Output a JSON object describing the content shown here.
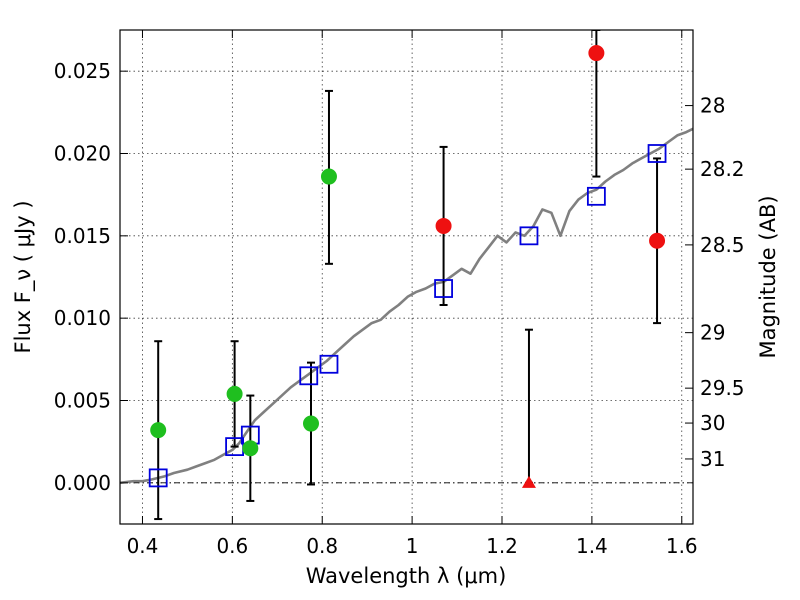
{
  "chart_data": {
    "type": "scatter",
    "title": "",
    "xlabel": "Wavelength  λ (μm)",
    "ylabel": "Flux  F_ν  ( μJy )",
    "y2label": "Magnitude (AB)",
    "xlim": [
      0.35,
      1.625
    ],
    "ylim": [
      -0.0025,
      0.0275
    ],
    "grid": true,
    "x_ticks": [
      "0.4",
      "0.6",
      "0.8",
      "1",
      "1.2",
      "1.4",
      "1.6"
    ],
    "x_tick_values": [
      0.4,
      0.6,
      0.8,
      1.0,
      1.2,
      1.4,
      1.6
    ],
    "y_ticks": [
      "0.000",
      "0.005",
      "0.010",
      "0.015",
      "0.020",
      "0.025"
    ],
    "y_tick_values": [
      0.0,
      0.005,
      0.01,
      0.015,
      0.02,
      0.025
    ],
    "mag_ticks": [
      {
        "label": "28",
        "flux": 0.02291
      },
      {
        "label": "28.2",
        "flux": 0.01905
      },
      {
        "label": "28.5",
        "flux": 0.01445
      },
      {
        "label": "29",
        "flux": 0.00912
      },
      {
        "label": "29.5",
        "flux": 0.00575
      },
      {
        "label": "30",
        "flux": 0.00363
      },
      {
        "label": "31",
        "flux": 0.00145
      }
    ],
    "zero_line": 0.0,
    "colors": {
      "model": "#808080",
      "green": "#1fbf1f",
      "red": "#ee1111",
      "blue_square": "#0000dd",
      "errorbar": "#000000"
    },
    "series": [
      {
        "style": "model-line",
        "color": "#808080",
        "points": [
          [
            0.35,
            0.0
          ],
          [
            0.38,
            0.0001
          ],
          [
            0.4,
            0.0001
          ],
          [
            0.42,
            0.0002
          ],
          [
            0.435,
            0.0003
          ],
          [
            0.45,
            0.0004
          ],
          [
            0.47,
            0.0006
          ],
          [
            0.5,
            0.0008
          ],
          [
            0.52,
            0.001
          ],
          [
            0.54,
            0.0012
          ],
          [
            0.56,
            0.0014
          ],
          [
            0.58,
            0.0017
          ],
          [
            0.6,
            0.002
          ],
          [
            0.615,
            0.0024
          ],
          [
            0.63,
            0.003
          ],
          [
            0.65,
            0.0038
          ],
          [
            0.67,
            0.0043
          ],
          [
            0.69,
            0.0048
          ],
          [
            0.71,
            0.0053
          ],
          [
            0.73,
            0.0058
          ],
          [
            0.75,
            0.0062
          ],
          [
            0.77,
            0.0066
          ],
          [
            0.79,
            0.007
          ],
          [
            0.81,
            0.0074
          ],
          [
            0.83,
            0.0079
          ],
          [
            0.85,
            0.0084
          ],
          [
            0.87,
            0.0089
          ],
          [
            0.89,
            0.0093
          ],
          [
            0.91,
            0.0097
          ],
          [
            0.93,
            0.0099
          ],
          [
            0.95,
            0.0104
          ],
          [
            0.97,
            0.0108
          ],
          [
            0.99,
            0.0113
          ],
          [
            1.01,
            0.0116
          ],
          [
            1.03,
            0.0118
          ],
          [
            1.05,
            0.0121
          ],
          [
            1.07,
            0.0122
          ],
          [
            1.09,
            0.0126
          ],
          [
            1.11,
            0.013
          ],
          [
            1.13,
            0.0127
          ],
          [
            1.15,
            0.0136
          ],
          [
            1.17,
            0.0143
          ],
          [
            1.19,
            0.015
          ],
          [
            1.21,
            0.0146
          ],
          [
            1.23,
            0.0152
          ],
          [
            1.25,
            0.015
          ],
          [
            1.27,
            0.0156
          ],
          [
            1.29,
            0.0166
          ],
          [
            1.31,
            0.0164
          ],
          [
            1.33,
            0.015
          ],
          [
            1.35,
            0.0165
          ],
          [
            1.37,
            0.0172
          ],
          [
            1.39,
            0.0176
          ],
          [
            1.41,
            0.0178
          ],
          [
            1.43,
            0.0183
          ],
          [
            1.45,
            0.0187
          ],
          [
            1.47,
            0.019
          ],
          [
            1.49,
            0.0194
          ],
          [
            1.51,
            0.0197
          ],
          [
            1.53,
            0.02
          ],
          [
            1.55,
            0.0203
          ],
          [
            1.57,
            0.0207
          ],
          [
            1.59,
            0.0211
          ],
          [
            1.61,
            0.0213
          ],
          [
            1.625,
            0.0215
          ]
        ]
      },
      {
        "style": "open-square",
        "color": "#0000dd",
        "points": [
          [
            0.435,
            0.0003
          ],
          [
            0.605,
            0.0022
          ],
          [
            0.64,
            0.0029
          ],
          [
            0.77,
            0.0065
          ],
          [
            0.815,
            0.0072
          ],
          [
            1.07,
            0.0118
          ],
          [
            1.26,
            0.015
          ],
          [
            1.41,
            0.0174
          ],
          [
            1.545,
            0.02
          ]
        ]
      },
      {
        "style": "filled-circle",
        "color": "#1fbf1f",
        "points": [
          {
            "x": 0.435,
            "y": 0.0032,
            "lo": -0.0022,
            "hi": 0.0086
          },
          {
            "x": 0.605,
            "y": 0.0054,
            "lo": 0.0022,
            "hi": 0.0086
          },
          {
            "x": 0.64,
            "y": 0.0021,
            "lo": -0.0011,
            "hi": 0.0053
          },
          {
            "x": 0.775,
            "y": 0.0036,
            "lo": -0.0001,
            "hi": 0.0073
          },
          {
            "x": 0.815,
            "y": 0.0186,
            "lo": 0.0133,
            "hi": 0.0238
          }
        ]
      },
      {
        "style": "filled-circle",
        "color": "#ee1111",
        "points": [
          {
            "x": 1.07,
            "y": 0.0156,
            "lo": 0.0108,
            "hi": 0.0204
          },
          {
            "x": 1.41,
            "y": 0.0261,
            "lo": 0.0186,
            "hi": 0.0275
          },
          {
            "x": 1.545,
            "y": 0.0147,
            "lo": 0.0097,
            "hi": 0.0197
          }
        ]
      },
      {
        "style": "filled-triangle",
        "color": "#ee1111",
        "points": [
          {
            "x": 1.26,
            "y": 0.0,
            "lo": 0.0,
            "hi": 0.0093
          }
        ]
      }
    ]
  }
}
